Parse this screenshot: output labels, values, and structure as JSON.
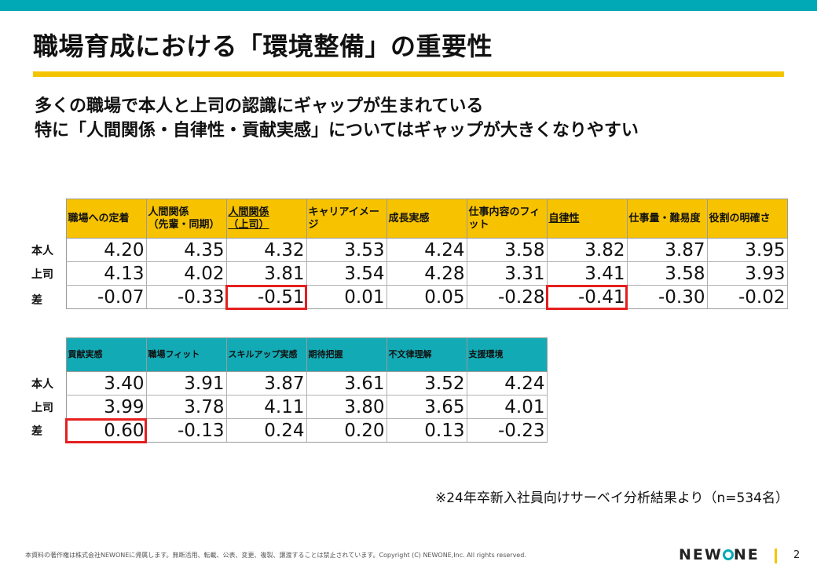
{
  "slide": {
    "title": "職場育成における「環境整備」の重要性",
    "subtitle_line1": "多くの職場で本人と上司の認識にギャップが生まれている",
    "subtitle_line2": "特に「人間関係・自律性・貢献実感」についてはギャップが大きくなりやすい"
  },
  "row_labels": [
    "本人",
    "上司",
    "差"
  ],
  "table1": {
    "headers": [
      "職場への定着",
      "人間関係\n（先輩・同期）",
      "人間関係\n（上司）",
      "キャリアイメージ",
      "成長実感",
      "仕事内容のフィット",
      "自律性",
      "仕事量・難易度",
      "役割の明確さ"
    ],
    "self": [
      "4.20",
      "4.35",
      "4.32",
      "3.53",
      "4.24",
      "3.58",
      "3.82",
      "3.87",
      "3.95"
    ],
    "boss": [
      "4.13",
      "4.02",
      "3.81",
      "3.54",
      "4.28",
      "3.31",
      "3.41",
      "3.58",
      "3.93"
    ],
    "diff": [
      "-0.07",
      "-0.33",
      "-0.51",
      "0.01",
      "0.05",
      "-0.28",
      "-0.41",
      "-0.30",
      "-0.02"
    ],
    "underlined_headers": [
      2,
      6
    ],
    "highlighted_diff": [
      2,
      6
    ]
  },
  "table2": {
    "headers": [
      "貢献実感",
      "職場フィット",
      "スキルアップ実感",
      "期待把握",
      "不文律理解",
      "支援環境"
    ],
    "self": [
      "3.40",
      "3.91",
      "3.87",
      "3.61",
      "3.52",
      "4.24"
    ],
    "boss": [
      "3.99",
      "3.78",
      "4.11",
      "3.80",
      "3.65",
      "4.01"
    ],
    "diff": [
      "0.60",
      "-0.13",
      "0.24",
      "0.20",
      "0.13",
      "-0.23"
    ],
    "highlighted_diff": [
      0
    ]
  },
  "note": "※24年卒新入社員向けサーベイ分析結果より（n=534名）",
  "footer": {
    "copyright": "本資料の著作権は株式会社NEWONEに帰属します。無断活用、転載、公表、変更、複製、譲渡することは禁止されています。Copyright (C) NEWONE,Inc.  All rights reserved.",
    "logo_part1": "NEW",
    "logo_part2": "NE",
    "page_number": "2"
  },
  "colors": {
    "top_bar": "#00a9b5",
    "title_rule": "#f5c400",
    "table1_header": "#f7c200",
    "table2_header": "#12aab5",
    "highlight": "#e51f1f"
  }
}
